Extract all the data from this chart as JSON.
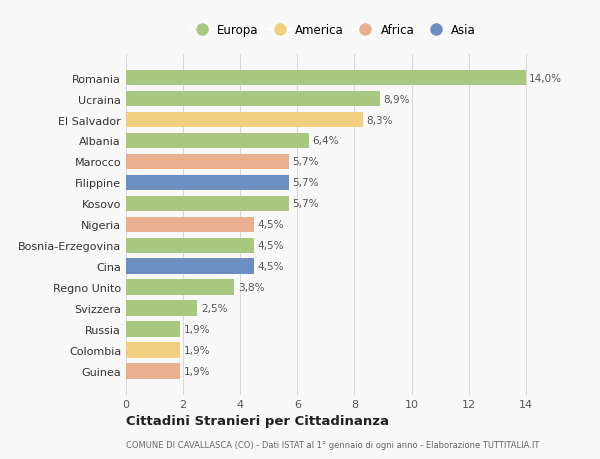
{
  "countries": [
    "Romania",
    "Ucraina",
    "El Salvador",
    "Albania",
    "Marocco",
    "Filippine",
    "Kosovo",
    "Nigeria",
    "Bosnia-Erzegovina",
    "Cina",
    "Regno Unito",
    "Svizzera",
    "Russia",
    "Colombia",
    "Guinea"
  ],
  "values": [
    14.0,
    8.9,
    8.3,
    6.4,
    5.7,
    5.7,
    5.7,
    4.5,
    4.5,
    4.5,
    3.8,
    2.5,
    1.9,
    1.9,
    1.9
  ],
  "continents": [
    "Europa",
    "Europa",
    "America",
    "Europa",
    "Africa",
    "Asia",
    "Europa",
    "Africa",
    "Europa",
    "Asia",
    "Europa",
    "Europa",
    "Europa",
    "America",
    "Africa"
  ],
  "continent_colors": {
    "Europa": "#a8c880",
    "America": "#f0d080",
    "Africa": "#e8b090",
    "Asia": "#6a8fc0"
  },
  "legend_order": [
    "Europa",
    "America",
    "Africa",
    "Asia"
  ],
  "title": "Cittadini Stranieri per Cittadinanza",
  "subtitle": "COMUNE DI CAVALLASCA (CO) - Dati ISTAT al 1° gennaio di ogni anno - Elaborazione TUTTITALIA.IT",
  "xlim": [
    0,
    14.5
  ],
  "xticks": [
    0,
    2,
    4,
    6,
    8,
    10,
    12,
    14
  ],
  "background_color": "#f9f9f9",
  "grid_color": "#d8d8d8",
  "bar_height": 0.75
}
